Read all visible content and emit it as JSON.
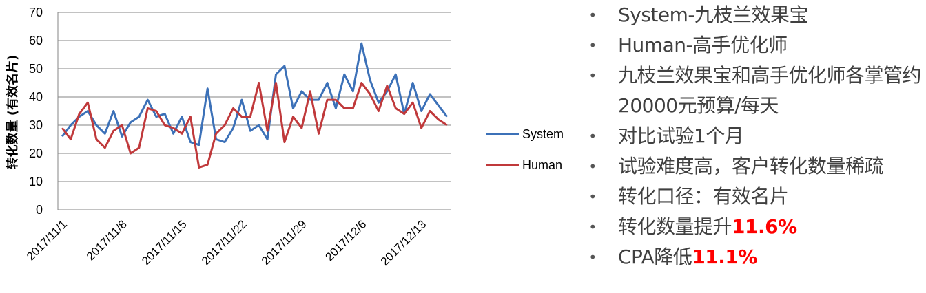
{
  "chart_data": {
    "type": "line",
    "ylabel": "转化数量 (有效名片)",
    "ylim": [
      0,
      70
    ],
    "yticks": [
      0,
      10,
      20,
      30,
      40,
      50,
      60,
      70
    ],
    "grid": true,
    "legend_position": "right",
    "x_tick_labels": [
      "2017/11/1",
      "2017/11/8",
      "2017/11/15",
      "2017/11/22",
      "2017/11/29",
      "2017/12/6",
      "2017/12/13"
    ],
    "x": [
      "2017/11/1",
      "2017/11/2",
      "2017/11/3",
      "2017/11/4",
      "2017/11/5",
      "2017/11/6",
      "2017/11/7",
      "2017/11/8",
      "2017/11/9",
      "2017/11/10",
      "2017/11/11",
      "2017/11/12",
      "2017/11/13",
      "2017/11/14",
      "2017/11/15",
      "2017/11/16",
      "2017/11/17",
      "2017/11/18",
      "2017/11/19",
      "2017/11/20",
      "2017/11/21",
      "2017/11/22",
      "2017/11/23",
      "2017/11/24",
      "2017/11/25",
      "2017/11/26",
      "2017/11/27",
      "2017/11/28",
      "2017/11/29",
      "2017/11/30",
      "2017/12/1",
      "2017/12/2",
      "2017/12/3",
      "2017/12/4",
      "2017/12/5",
      "2017/12/6",
      "2017/12/7",
      "2017/12/8",
      "2017/12/9",
      "2017/12/10",
      "2017/12/11",
      "2017/12/12",
      "2017/12/13",
      "2017/12/14",
      "2017/12/15",
      "2017/12/16"
    ],
    "series": [
      {
        "name": "System",
        "color": "#3c71b8",
        "values": [
          26,
          30,
          33,
          35,
          30,
          27,
          35,
          26,
          31,
          33,
          39,
          33,
          34,
          27,
          33,
          24,
          23,
          43,
          25,
          24,
          29,
          39,
          28,
          30,
          25,
          48,
          51,
          36,
          42,
          39,
          39,
          45,
          36,
          48,
          42,
          59,
          46,
          38,
          42,
          48,
          34,
          45,
          35,
          41,
          37,
          33
        ]
      },
      {
        "name": "Human",
        "color": "#c0393b",
        "values": [
          29,
          25,
          34,
          38,
          25,
          22,
          28,
          30,
          20,
          22,
          36,
          35,
          30,
          29,
          27,
          33,
          15,
          16,
          27,
          30,
          36,
          33,
          33,
          45,
          28,
          45,
          24,
          33,
          29,
          42,
          27,
          39,
          39,
          36,
          36,
          45,
          41,
          35,
          44,
          36,
          34,
          38,
          29,
          35,
          32,
          30
        ]
      }
    ]
  },
  "bullets": [
    {
      "text": "System-九枝兰效果宝",
      "highlight": ""
    },
    {
      "text": "Human-高手优化师",
      "highlight": ""
    },
    {
      "text": "九枝兰效果宝和高手优化师各掌管约20000元预算/每天",
      "highlight": ""
    },
    {
      "text": "对比试验1个月",
      "highlight": ""
    },
    {
      "text": "试验难度高，客户转化数量稀疏",
      "highlight": ""
    },
    {
      "text": "转化口径：有效名片",
      "highlight": ""
    },
    {
      "text": "转化数量提升",
      "highlight": "11.6%"
    },
    {
      "text": "CPA降低",
      "highlight": "11.1%"
    }
  ],
  "colors": {
    "grid": "#868686",
    "text": "#404040",
    "highlight": "#ff0000"
  }
}
